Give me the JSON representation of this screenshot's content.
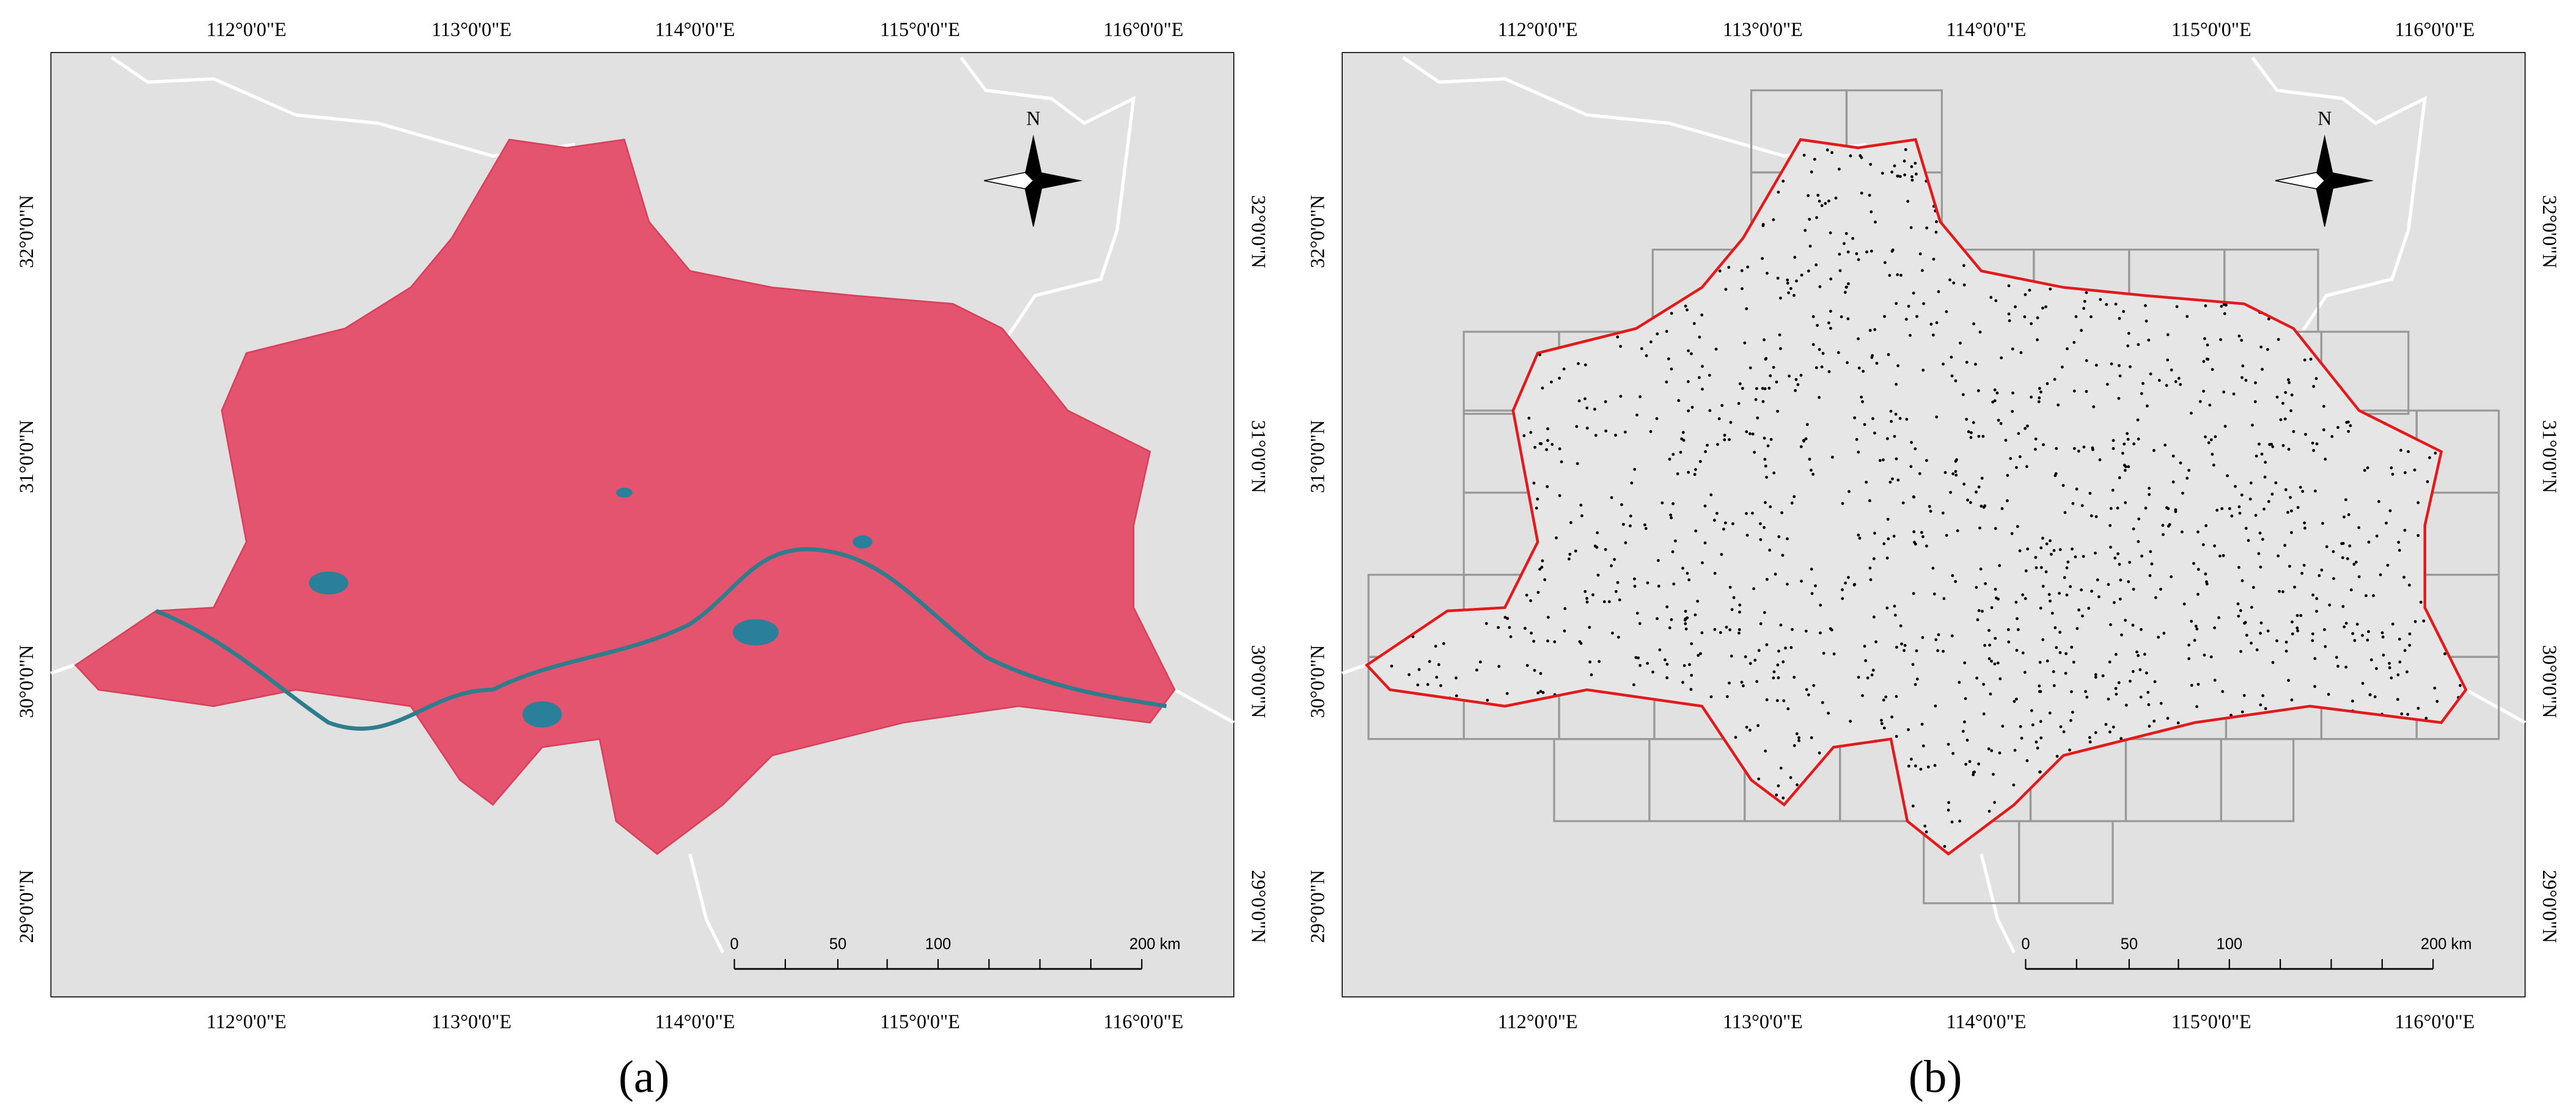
{
  "panels": [
    {
      "caption": "(a)",
      "top_labels": [
        "112°0'0\"E",
        "113°0'0\"E",
        "114°0'0\"E",
        "115°0'0\"E",
        "116°0'0\"E"
      ],
      "bottom_labels": [
        "112°0'0\"E",
        "113°0'0\"E",
        "114°0'0\"E",
        "115°0'0\"E",
        "116°0'0\"E"
      ],
      "left_labels": [
        "32°0'0\"N",
        "31°0'0\"N",
        "30°0'0\"N",
        "29°0'0\"N"
      ],
      "right_labels": [
        "32°0'0\"N",
        "31°0'0\"N",
        "30°0'0\"N",
        "29°0'0\"N"
      ],
      "north": "N",
      "scale_labels": [
        "0",
        "50",
        "100",
        "200 km"
      ]
    },
    {
      "caption": "(b)",
      "top_labels": [
        "112°0'0\"E",
        "113°0'0\"E",
        "114°0'0\"E",
        "115°0'0\"E",
        "116°0'0\"E"
      ],
      "bottom_labels": [
        "112°0'0\"E",
        "113°0'0\"E",
        "114°0'0\"E",
        "115°0'0\"E",
        "116°0'0\"E"
      ],
      "left_labels": [
        "32°0'0\"N",
        "31°0'0\"N",
        "30°0'0\"N",
        "29°0'0\"N"
      ],
      "right_labels": [
        "32°0'0\"N",
        "31°0'0\"N",
        "30°0'0\"N",
        "29°0'0\"N"
      ],
      "north": "N",
      "scale_labels": [
        "0",
        "50",
        "100",
        "200 km"
      ]
    }
  ]
}
